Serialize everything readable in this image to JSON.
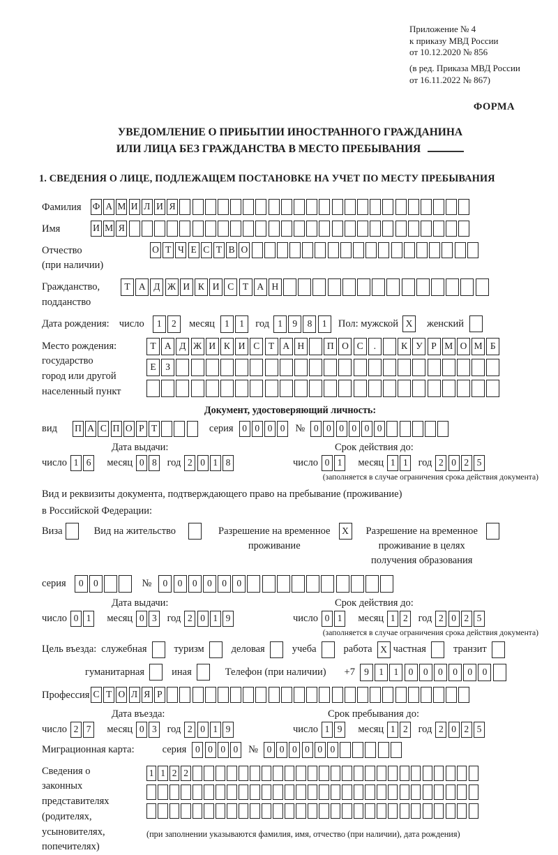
{
  "header": {
    "lines": [
      "Приложение № 4",
      "к приказу МВД России",
      "от 10.12.2020 № 856",
      "(в ред. Приказа МВД России",
      "от 16.11.2022 № 867)"
    ],
    "forma": "ФОРМА"
  },
  "title": {
    "line1": "УВЕДОМЛЕНИЕ О ПРИБЫТИИ ИНОСТРАННОГО ГРАЖДАНИНА",
    "line2": "ИЛИ ЛИЦА БЕЗ ГРАЖДАНСТВА В МЕСТО ПРЕБЫВАНИЯ"
  },
  "section1_heading": "1. СВЕДЕНИЯ О ЛИЦЕ, ПОДЛЕЖАЩЕМ ПОСТАНОВКЕ НА УЧЕТ ПО МЕСТУ ПРЕБЫВАНИЯ",
  "labels": {
    "surname": "Фамилия",
    "name": "Имя",
    "patronymic": "Отчество\n(при наличии)",
    "citizenship": "Гражданство,\nподданство",
    "birth_date": "Дата рождения:",
    "day": "число",
    "month": "месяц",
    "year": "год",
    "sex_male": "Пол: мужской",
    "sex_female": "женский",
    "birthplace": "Место рождения:\nгосударство\nгород или другой\nнаселенный пункт",
    "id_doc_heading": "Документ, удостоверяющий личность:",
    "vid": "вид",
    "seriya": "серия",
    "nomer": "№",
    "issue_date": "Дата выдачи:",
    "expiry_date": "Срок действия до:",
    "expiry_note": "(заполняется в случае ограничения срока действия документа)",
    "stay_doc_line1": "Вид и реквизиты документа, подтверждающего право на пребывание (проживание)",
    "stay_doc_line2": "в Российской Федерации:",
    "visa": "Виза",
    "residence_permit": "Вид на жительство",
    "temp_residence": "Разрешение на временное\nпроживание",
    "temp_residence_edu": "Разрешение на временное\nпроживание в целях\nполучения образования",
    "purpose": "Цель въезда:",
    "official": "служебная",
    "tourism": "туризм",
    "business": "деловая",
    "study": "учеба",
    "work": "работа",
    "private": "частная",
    "transit": "транзит",
    "humanitarian": "гуманитарная",
    "other": "иная",
    "phone": "Телефон (при наличии)",
    "phone_prefix": "+7",
    "profession": "Профессия",
    "entry_date": "Дата въезда:",
    "stay_until": "Срок пребывания до:",
    "migration_card": "Миграционная карта:",
    "representatives": "Сведения о\nзаконных\nпредставителях\n(родителях,\nусыновителях,\nпопечителях)",
    "representatives_note": "(при заполнении указываются фамилия, имя, отчество (при наличии), дата рождения)"
  },
  "cells": {
    "surname": [
      "Ф",
      "А",
      "М",
      "И",
      "Л",
      "И",
      "Я",
      "",
      "",
      "",
      "",
      "",
      "",
      "",
      "",
      "",
      "",
      "",
      "",
      "",
      "",
      "",
      "",
      "",
      "",
      "",
      "",
      "",
      "",
      ""
    ],
    "name": [
      "И",
      "М",
      "Я",
      "",
      "",
      "",
      "",
      "",
      "",
      "",
      "",
      "",
      "",
      "",
      "",
      "",
      "",
      "",
      "",
      "",
      "",
      "",
      "",
      "",
      "",
      "",
      "",
      "",
      "",
      ""
    ],
    "patronymic": [
      "О",
      "Т",
      "Ч",
      "Е",
      "С",
      "Т",
      "В",
      "О",
      "",
      "",
      "",
      "",
      "",
      "",
      "",
      "",
      "",
      "",
      "",
      "",
      "",
      "",
      "",
      "",
      "",
      ""
    ],
    "citizenship": [
      "Т",
      "А",
      "Д",
      "Ж",
      "И",
      "К",
      "И",
      "С",
      "Т",
      "А",
      "Н",
      "",
      "",
      "",
      "",
      "",
      "",
      "",
      "",
      "",
      "",
      "",
      "",
      "",
      ""
    ],
    "birthplace_row1": [
      "Т",
      "А",
      "Д",
      "Ж",
      "И",
      "К",
      "И",
      "С",
      "Т",
      "А",
      "Н",
      "",
      "П",
      "О",
      "С",
      ".",
      "",
      "К",
      "У",
      "Р",
      "М",
      "О",
      "М",
      "Б"
    ],
    "birthplace_row2": [
      "Е",
      "З",
      "",
      "",
      "",
      "",
      "",
      "",
      "",
      "",
      "",
      "",
      "",
      "",
      "",
      "",
      "",
      "",
      "",
      "",
      "",
      "",
      "",
      ""
    ],
    "birthplace_row3": [
      "",
      "",
      "",
      "",
      "",
      "",
      "",
      "",
      "",
      "",
      "",
      "",
      "",
      "",
      "",
      "",
      "",
      "",
      "",
      "",
      "",
      "",
      "",
      ""
    ],
    "id_vid": [
      "П",
      "А",
      "С",
      "П",
      "О",
      "Р",
      "Т",
      "",
      "",
      ""
    ],
    "id_seriya": [
      "0",
      "0",
      "0",
      "0"
    ],
    "id_nomer": [
      "0",
      "0",
      "0",
      "0",
      "0",
      "0",
      "",
      "",
      "",
      "",
      ""
    ],
    "permit_seriya": [
      "0",
      "0",
      "",
      ""
    ],
    "permit_nomer": [
      "0",
      "0",
      "0",
      "0",
      "0",
      "0",
      "",
      "",
      "",
      "",
      "",
      "",
      "",
      "",
      "",
      ""
    ],
    "phone": [
      "9",
      "1",
      "1",
      "0",
      "0",
      "0",
      "0",
      "0",
      "0",
      ""
    ],
    "profession": [
      "С",
      "Т",
      "О",
      "Л",
      "Я",
      "Р",
      "",
      "",
      "",
      "",
      "",
      "",
      "",
      "",
      "",
      "",
      "",
      "",
      "",
      "",
      "",
      "",
      "",
      "",
      "",
      "",
      "",
      "",
      "",
      ""
    ],
    "migr_seriya": [
      "0",
      "0",
      "0",
      "0"
    ],
    "migr_nomer": [
      "0",
      "0",
      "0",
      "0",
      "0",
      "0",
      "",
      "",
      "",
      "",
      ""
    ],
    "reps_row1": [
      "1",
      "1",
      "2",
      "2",
      "",
      "",
      "",
      "",
      "",
      "",
      "",
      "",
      "",
      "",
      "",
      "",
      "",
      "",
      "",
      "",
      "",
      "",
      "",
      "",
      "",
      "",
      "",
      "",
      ""
    ],
    "reps_row2": [
      "",
      "",
      "",
      "",
      "",
      "",
      "",
      "",
      "",
      "",
      "",
      "",
      "",
      "",
      "",
      "",
      "",
      "",
      "",
      "",
      "",
      "",
      "",
      "",
      "",
      "",
      "",
      "",
      ""
    ],
    "reps_row3": [
      "",
      "",
      "",
      "",
      "",
      "",
      "",
      "",
      "",
      "",
      "",
      "",
      "",
      "",
      "",
      "",
      "",
      "",
      "",
      "",
      "",
      "",
      "",
      "",
      "",
      "",
      "",
      "",
      ""
    ]
  },
  "dates": {
    "birth": {
      "day": [
        "1",
        "2"
      ],
      "month": [
        "1",
        "1"
      ],
      "year": [
        "1",
        "9",
        "8",
        "1"
      ]
    },
    "id_issue": {
      "day": [
        "1",
        "6"
      ],
      "month": [
        "0",
        "8"
      ],
      "year": [
        "2",
        "0",
        "1",
        "8"
      ]
    },
    "id_expiry": {
      "day": [
        "0",
        "1"
      ],
      "month": [
        "1",
        "1"
      ],
      "year": [
        "2",
        "0",
        "2",
        "5"
      ]
    },
    "permit_issue": {
      "day": [
        "0",
        "1"
      ],
      "month": [
        "0",
        "3"
      ],
      "year": [
        "2",
        "0",
        "1",
        "9"
      ]
    },
    "permit_expiry": {
      "day": [
        "0",
        "1"
      ],
      "month": [
        "1",
        "2"
      ],
      "year": [
        "2",
        "0",
        "2",
        "5"
      ]
    },
    "entry": {
      "day": [
        "2",
        "7"
      ],
      "month": [
        "0",
        "3"
      ],
      "year": [
        "2",
        "0",
        "1",
        "9"
      ]
    },
    "stay_until": {
      "day": [
        "1",
        "9"
      ],
      "month": [
        "1",
        "2"
      ],
      "year": [
        "2",
        "0",
        "2",
        "5"
      ]
    }
  },
  "checkboxes": {
    "sex_male": "X",
    "sex_female": "",
    "visa": "",
    "residence_permit": "",
    "temp_residence": "X",
    "temp_residence_edu": "",
    "official": "",
    "tourism": "",
    "business": "",
    "study": "",
    "work": "X",
    "private": "",
    "transit": "",
    "humanitarian": "",
    "other": ""
  }
}
